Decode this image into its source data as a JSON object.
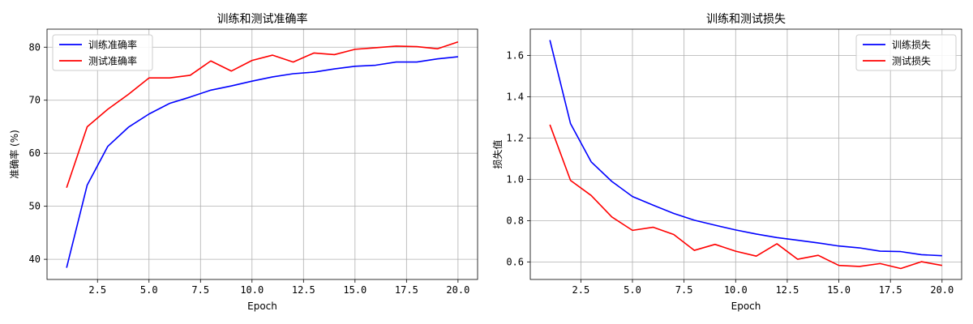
{
  "chart_data": [
    {
      "type": "line",
      "title": "训练和测试准确率",
      "xlabel": "Epoch",
      "ylabel": "准确率 (%)",
      "xlim": [
        0.05,
        20.95
      ],
      "ylim": [
        36.2,
        83.4
      ],
      "xticks": [
        2.5,
        5.0,
        7.5,
        10.0,
        12.5,
        15.0,
        17.5,
        20.0
      ],
      "xtick_labels": [
        "2.5",
        "5.0",
        "7.5",
        "10.0",
        "12.5",
        "15.0",
        "17.5",
        "20.0"
      ],
      "yticks": [
        40,
        50,
        60,
        70,
        80
      ],
      "ytick_labels": [
        "40",
        "50",
        "60",
        "70",
        "80"
      ],
      "grid": true,
      "legend_position": "top-left",
      "x": [
        1,
        2,
        3,
        4,
        5,
        6,
        7,
        8,
        9,
        10,
        11,
        12,
        13,
        14,
        15,
        16,
        17,
        18,
        19,
        20
      ],
      "series": [
        {
          "name": "训练准确率",
          "color": "#0000ff",
          "values": [
            38.4,
            54.0,
            61.3,
            64.9,
            67.4,
            69.4,
            70.6,
            71.9,
            72.7,
            73.6,
            74.4,
            75.0,
            75.3,
            75.9,
            76.4,
            76.6,
            77.2,
            77.2,
            77.8,
            78.2
          ]
        },
        {
          "name": "测试准确率",
          "color": "#ff0000",
          "values": [
            53.5,
            65.0,
            68.3,
            71.1,
            74.2,
            74.2,
            74.7,
            77.4,
            75.5,
            77.5,
            78.5,
            77.2,
            78.9,
            78.6,
            79.6,
            79.9,
            80.2,
            80.1,
            79.7,
            81.0
          ]
        }
      ]
    },
    {
      "type": "line",
      "title": "训练和测试损失",
      "xlabel": "Epoch",
      "ylabel": "损失值",
      "xlim": [
        0.05,
        20.95
      ],
      "ylim": [
        0.515,
        1.728
      ],
      "xticks": [
        2.5,
        5.0,
        7.5,
        10.0,
        12.5,
        15.0,
        17.5,
        20.0
      ],
      "xtick_labels": [
        "2.5",
        "5.0",
        "7.5",
        "10.0",
        "12.5",
        "15.0",
        "17.5",
        "20.0"
      ],
      "yticks": [
        0.6,
        0.8,
        1.0,
        1.2,
        1.4,
        1.6
      ],
      "ytick_labels": [
        "0.6",
        "0.8",
        "1.0",
        "1.2",
        "1.4",
        "1.6"
      ],
      "grid": true,
      "legend_position": "top-right",
      "x": [
        1,
        2,
        3,
        4,
        5,
        6,
        7,
        8,
        9,
        10,
        11,
        12,
        13,
        14,
        15,
        16,
        17,
        18,
        19,
        20
      ],
      "series": [
        {
          "name": "训练损失",
          "color": "#0000ff",
          "values": [
            1.675,
            1.27,
            1.085,
            0.99,
            0.917,
            0.875,
            0.835,
            0.802,
            0.778,
            0.755,
            0.735,
            0.718,
            0.705,
            0.692,
            0.677,
            0.668,
            0.652,
            0.65,
            0.635,
            0.63
          ]
        },
        {
          "name": "测试损失",
          "color": "#ff0000",
          "values": [
            1.265,
            0.995,
            0.922,
            0.818,
            0.753,
            0.768,
            0.733,
            0.656,
            0.685,
            0.652,
            0.628,
            0.688,
            0.613,
            0.632,
            0.583,
            0.578,
            0.592,
            0.568,
            0.601,
            0.583
          ]
        }
      ]
    }
  ]
}
